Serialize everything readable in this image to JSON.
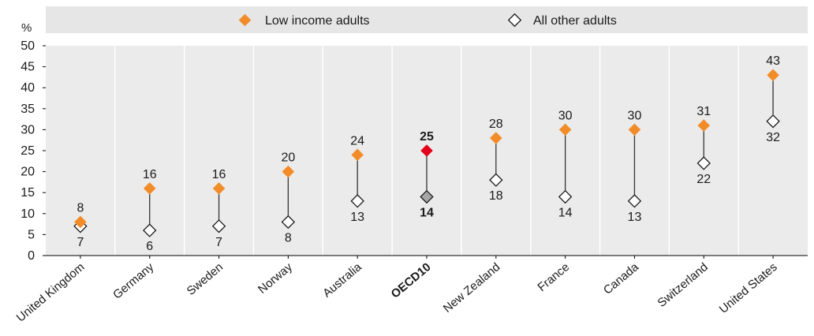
{
  "chart_data": {
    "type": "dumbbell",
    "y_unit_label": "%",
    "ylim": [
      0,
      50
    ],
    "y_ticks": [
      0,
      5,
      10,
      15,
      20,
      25,
      30,
      35,
      40,
      45,
      50
    ],
    "grid": "vertical category separators",
    "legend_placement": "top",
    "categories": [
      "United Kingdom",
      "Germany",
      "Sweden",
      "Norway",
      "Australia",
      "OECD10",
      "New Zealand",
      "France",
      "Canada",
      "Switzerland",
      "United States"
    ],
    "highlight_category": "OECD10",
    "series": [
      {
        "name": "Low income adults",
        "values": [
          8,
          16,
          16,
          20,
          24,
          25,
          28,
          30,
          30,
          31,
          43
        ],
        "marker": "filled-diamond"
      },
      {
        "name": "All other adults",
        "values": [
          7,
          6,
          7,
          8,
          13,
          14,
          18,
          14,
          13,
          22,
          32
        ],
        "marker": "open-diamond"
      }
    ],
    "colors": {
      "low_income": "#f28c28",
      "other_fill": "#ffffff",
      "highlight_low": "#e3001b",
      "highlight_other": "#a6a6a6",
      "legend_band": "#e6e6e6",
      "plot_bg": "#ebebeb",
      "separator": "#ffffff",
      "connector": "#333333"
    }
  }
}
